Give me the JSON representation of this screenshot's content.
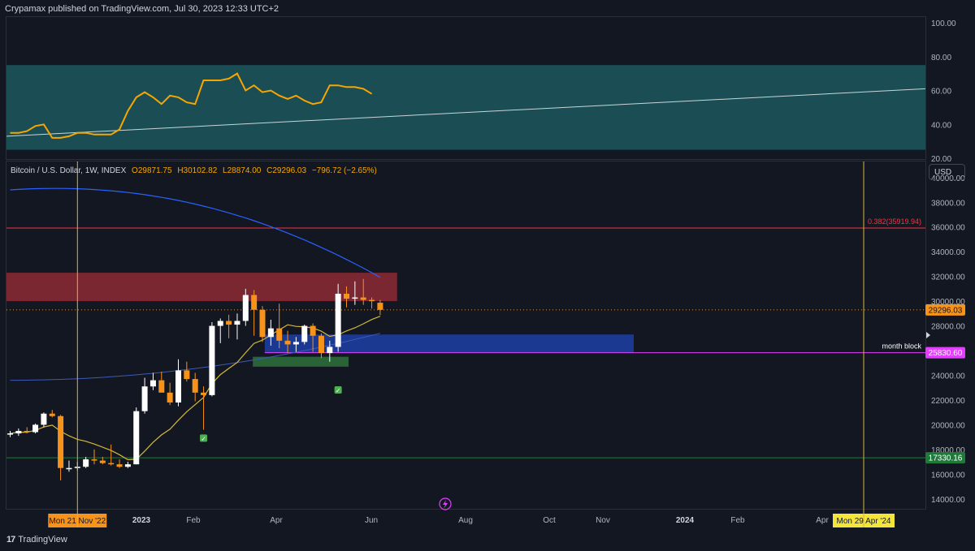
{
  "header": {
    "published_text": "Crypamax published on TradingView.com, Jul 30, 2023 12:33 UTC+2"
  },
  "legend": {
    "symbol": "Bitcoin / U.S. Dollar, 1W, INDEX",
    "open": "O29871.75",
    "high": "H30102.82",
    "low": "L28874.00",
    "close": "C29296.03",
    "change": "−796.72 (−2.65%)"
  },
  "currency_button": "USD",
  "footer": {
    "logo_text": "TradingView"
  },
  "colors": {
    "background": "#131722",
    "up_candle": "#ffffff",
    "down_candle": "#f7931a",
    "rsi_line": "#f7a600",
    "rsi_band": "#1b4d55",
    "ma_long": "#2962ff",
    "ma_short": "#d4b83a",
    "supply_zone": "#8e2a34",
    "demand_zone": "#1e3fa6",
    "green_zone": "#2e6b3a",
    "fib_line": "#f23645",
    "month_block_line": "#e040fb",
    "support_line": "#1f7a3a",
    "vertical_marker": "#d4b83a"
  },
  "chart_data": [
    {
      "type": "line",
      "name": "rsi-pane",
      "ylim": [
        20,
        100
      ],
      "yticks": [
        "100.00",
        "80.00",
        "60.00",
        "40.00",
        "20.00"
      ],
      "band": [
        25,
        75
      ],
      "series": [
        {
          "values": [
            35,
            35,
            36,
            39,
            40,
            32,
            32,
            33,
            35,
            35,
            34,
            34,
            34,
            37,
            48,
            56,
            59,
            56,
            52,
            57,
            56,
            53,
            52,
            66,
            66,
            66,
            67,
            70,
            60,
            63,
            59,
            60,
            57,
            55,
            57,
            54,
            52,
            53,
            63,
            63,
            62,
            62,
            61,
            58
          ]
        }
      ],
      "trendline": [
        [
          0,
          33
        ],
        [
          1,
          61
        ]
      ]
    },
    {
      "type": "candlestick",
      "name": "price-pane",
      "ylim": [
        13200,
        41300
      ],
      "yticks": [
        "40000.00",
        "38000.00",
        "36000.00",
        "34000.00",
        "32000.00",
        "30000.00",
        "28000.00",
        "26000.00",
        "24000.00",
        "22000.00",
        "20000.00",
        "18000.00",
        "16000.00",
        "14000.00"
      ],
      "xticks": [
        "2023",
        "Feb",
        "Apr",
        "Jun",
        "Aug",
        "Oct",
        "Nov",
        "2024",
        "Feb",
        "Apr"
      ],
      "candles": [
        [
          19200,
          19500,
          19000,
          19300
        ],
        [
          19300,
          19700,
          19100,
          19500
        ],
        [
          19500,
          19800,
          19300,
          19400
        ],
        [
          19400,
          20100,
          19300,
          20000
        ],
        [
          20000,
          21000,
          19800,
          20900
        ],
        [
          20900,
          21200,
          20600,
          20700
        ],
        [
          20700,
          20800,
          15500,
          16500
        ],
        [
          16500,
          17100,
          16200,
          16500
        ],
        [
          16500,
          17000,
          16300,
          16600
        ],
        [
          16600,
          17400,
          16500,
          17200
        ],
        [
          17200,
          18000,
          16800,
          17100
        ],
        [
          17100,
          17400,
          16800,
          16900
        ],
        [
          16900,
          18400,
          16700,
          16800
        ],
        [
          16800,
          17200,
          16500,
          16600
        ],
        [
          16600,
          17000,
          16500,
          16800
        ],
        [
          16800,
          21400,
          16800,
          21100
        ],
        [
          21100,
          23800,
          20900,
          23100
        ],
        [
          23100,
          24200,
          22800,
          23600
        ],
        [
          23600,
          24300,
          22700,
          22600
        ],
        [
          22600,
          23400,
          21600,
          21800
        ],
        [
          21800,
          25300,
          21500,
          24400
        ],
        [
          24400,
          25100,
          23500,
          23700
        ],
        [
          23700,
          24200,
          21900,
          22600
        ],
        [
          22600,
          23100,
          19600,
          22400
        ],
        [
          22400,
          28300,
          22300,
          28000
        ],
        [
          28000,
          28600,
          26600,
          28400
        ],
        [
          28400,
          28900,
          27000,
          28100
        ],
        [
          28100,
          29000,
          26900,
          28400
        ],
        [
          28400,
          31000,
          28000,
          30500
        ],
        [
          30500,
          30900,
          27200,
          29300
        ],
        [
          29300,
          29600,
          26700,
          27100
        ],
        [
          27100,
          28500,
          26400,
          27800
        ],
        [
          27800,
          29800,
          26200,
          26800
        ],
        [
          26800,
          27600,
          25800,
          26500
        ],
        [
          26500,
          27100,
          25900,
          26700
        ],
        [
          26700,
          28100,
          26500,
          28000
        ],
        [
          28000,
          28200,
          25900,
          27200
        ],
        [
          27200,
          27400,
          25400,
          25800
        ],
        [
          25800,
          26800,
          25100,
          26300
        ],
        [
          26300,
          31400,
          25900,
          30600
        ],
        [
          30600,
          31200,
          29500,
          30200
        ],
        [
          30200,
          31600,
          29700,
          30300
        ],
        [
          30300,
          31800,
          29700,
          30100
        ],
        [
          30100,
          30300,
          29400,
          30000
        ],
        [
          29871.75,
          30102.82,
          28874.0,
          29296.03
        ]
      ],
      "labels": {
        "fib": "0.382(35919.94)",
        "current_price": "29296.03",
        "month_block": "month block",
        "month_block_price": "25830.60",
        "support_price": "17330.16",
        "date_start": "Mon 21 Nov '22",
        "date_end": "Mon 29 Apr '24"
      },
      "levels": {
        "fib": 35919.94,
        "month_block": 25830.6,
        "support": 17330.16,
        "current": 29296.03
      },
      "zones": {
        "supply": [
          30000,
          32300
        ],
        "demand": [
          25830.6,
          27300
        ],
        "green": [
          24700,
          25500
        ]
      }
    }
  ]
}
